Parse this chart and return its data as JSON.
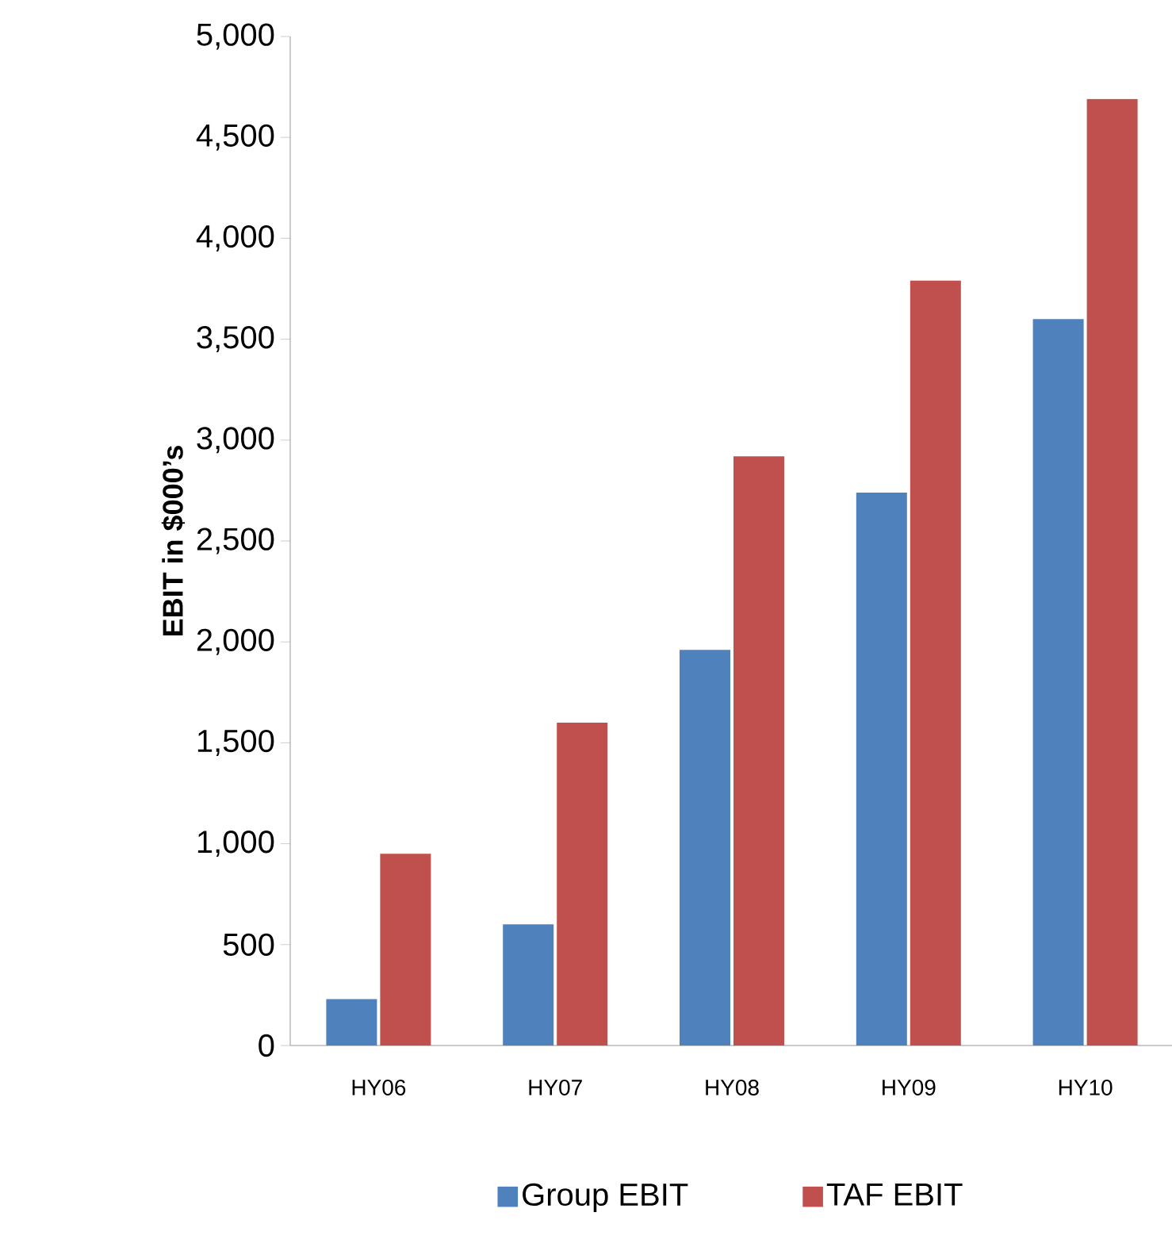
{
  "chart_data": {
    "type": "bar",
    "ylabel": "EBIT in $000’s",
    "categories": [
      "HY06",
      "HY07",
      "HY08",
      "HY09",
      "HY10"
    ],
    "series": [
      {
        "name": "Group EBIT",
        "color": "#4f81bd",
        "values": [
          230,
          600,
          1960,
          2740,
          3600
        ]
      },
      {
        "name": "TAF EBIT",
        "color": "#c0504d",
        "values": [
          950,
          1600,
          2920,
          3790,
          4690
        ]
      }
    ],
    "ylim": [
      0,
      5000
    ],
    "yticks": [
      {
        "value": 0,
        "label": "0"
      },
      {
        "value": 500,
        "label": "500"
      },
      {
        "value": 1000,
        "label": "1,000"
      },
      {
        "value": 1500,
        "label": "1,500"
      },
      {
        "value": 2000,
        "label": "2,000"
      },
      {
        "value": 2500,
        "label": "2,500"
      },
      {
        "value": 3000,
        "label": "3,000"
      },
      {
        "value": 3500,
        "label": "3,500"
      },
      {
        "value": 4000,
        "label": "4,000"
      },
      {
        "value": 4500,
        "label": "4,500"
      },
      {
        "value": 5000,
        "label": "5,000"
      }
    ],
    "grid": false,
    "legend": "bottom"
  }
}
